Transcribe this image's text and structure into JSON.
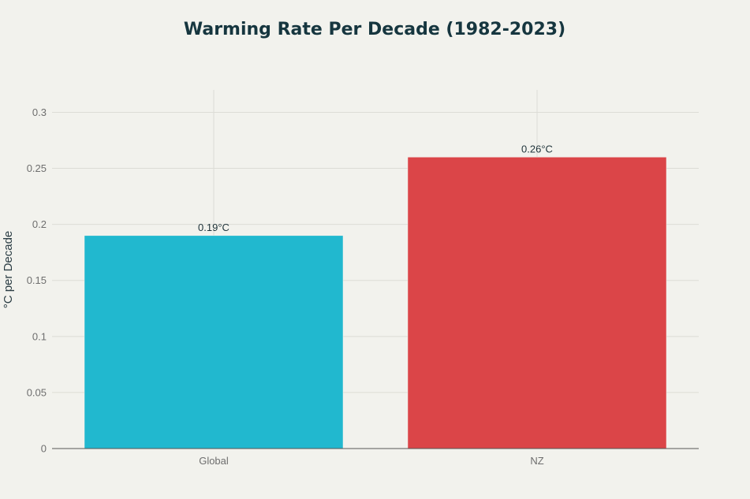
{
  "chart_data": {
    "type": "bar",
    "title": "Warming Rate Per Decade (1982-2023)",
    "xlabel": "",
    "ylabel": "°C per Decade",
    "categories": [
      "Global",
      "NZ"
    ],
    "values": [
      0.19,
      0.26
    ],
    "data_labels": [
      "0.19°C",
      "0.26°C"
    ],
    "colors": [
      "#21b8cf",
      "#db4548"
    ],
    "ylim": [
      0,
      0.32
    ],
    "yticks": [
      0,
      0.05,
      0.1,
      0.15,
      0.2,
      0.25,
      0.3
    ],
    "ytick_labels": [
      "0",
      "0.05",
      "0.1",
      "0.15",
      "0.2",
      "0.25",
      "0.3"
    ],
    "grid": true,
    "legend": "none"
  }
}
